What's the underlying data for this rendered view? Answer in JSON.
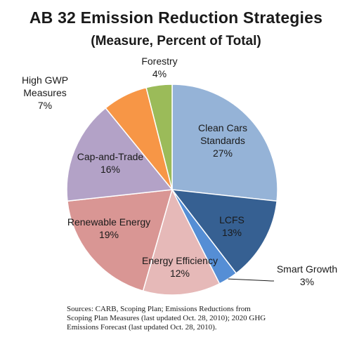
{
  "chart_data": {
    "type": "pie",
    "title": "AB 32 Emission Reduction Strategies",
    "subtitle": "(Measure, Percent of Total)",
    "slices": [
      {
        "name": "Clean Cars Standards",
        "value": 27,
        "label_lines": [
          "Clean Cars",
          "Standards",
          "27%"
        ],
        "color": "#95b3d7"
      },
      {
        "name": "LCFS",
        "value": 13,
        "label_lines": [
          "LCFS",
          "13%"
        ],
        "color": "#366092"
      },
      {
        "name": "Smart Growth",
        "value": 3,
        "label_lines": [
          "Smart Growth",
          "3%"
        ],
        "color": "#558ed5"
      },
      {
        "name": "Energy Efficiency",
        "value": 12,
        "label_lines": [
          "Energy Efficiency",
          "12%"
        ],
        "color": "#e6b9b8"
      },
      {
        "name": "Renewable Energy",
        "value": 19,
        "label_lines": [
          "Renewable Energy",
          "19%"
        ],
        "color": "#d99694"
      },
      {
        "name": "Cap-and-Trade",
        "value": 16,
        "label_lines": [
          "Cap-and-Trade",
          "16%"
        ],
        "color": "#b3a2c7"
      },
      {
        "name": "High GWP Measures",
        "value": 7,
        "label_lines": [
          "High GWP",
          "Measures",
          "7%"
        ],
        "color": "#f79646"
      },
      {
        "name": "Forestry",
        "value": 4,
        "label_lines": [
          "Forestry",
          "4%"
        ],
        "color": "#9bbb59"
      }
    ],
    "legend": "none"
  },
  "footer": {
    "sources_lines": [
      "Sources: CARB, Scoping Plan; Emissions Reductions from",
      "Scoping Plan Measures (last updated Oct. 28, 2010); 2020 GHG",
      "Emissions Forecast (last updated Oct. 28, 2010)."
    ]
  }
}
